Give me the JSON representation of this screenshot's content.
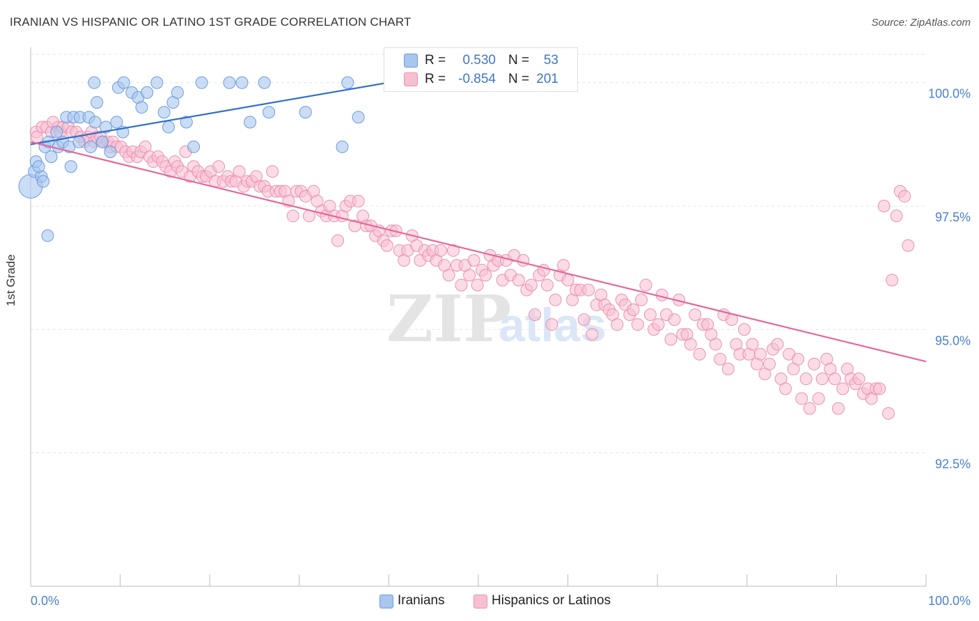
{
  "title": "IRANIAN VS HISPANIC OR LATINO 1ST GRADE CORRELATION CHART",
  "source": "Source: ZipAtlas.com",
  "watermark": {
    "zip": "ZIP",
    "atlas": "atlas"
  },
  "colors": {
    "blue_fill": "#a9c6ee",
    "blue_stroke": "#6a9be0",
    "blue_line": "#2f6fcb",
    "pink_fill": "#f7bfd2",
    "pink_stroke": "#ec8fb0",
    "pink_line": "#e5679a",
    "tick_text": "#4a7fd0",
    "grid": "#e3e3e3"
  },
  "legend": {
    "rows": [
      {
        "r_label": "R =",
        "r_value": "0.530",
        "n_label": "N =",
        "n_value": "53"
      },
      {
        "r_label": "R =",
        "r_value": "-0.854",
        "n_label": "N =",
        "n_value": "201"
      }
    ]
  },
  "bottom_legend": {
    "items": [
      "Iranians",
      "Hispanics or Latinos"
    ]
  },
  "chart_data": {
    "type": "scatter",
    "title": "IRANIAN VS HISPANIC OR LATINO 1ST GRADE CORRELATION CHART",
    "ylabel": "1st Grade",
    "xlabel": "",
    "x_tick_labels": [
      "0.0%",
      "100.0%"
    ],
    "y_tick_labels": [
      "100.0%",
      "97.5%",
      "95.0%",
      "92.5%"
    ],
    "y_tick_values": [
      100.0,
      97.5,
      95.0,
      92.5
    ],
    "xlim": [
      0,
      100
    ],
    "ylim": [
      89.8,
      100.8
    ],
    "grid": true,
    "legend_position": "top-center",
    "series": [
      {
        "name": "Iranians",
        "R": 0.53,
        "N": 53,
        "trend": {
          "x": [
            0,
            41.5
          ],
          "y": [
            98.75,
            100.05
          ]
        },
        "points": [
          [
            0.0,
            97.9
          ],
          [
            0.4,
            98.2
          ],
          [
            0.6,
            98.4
          ],
          [
            1.2,
            98.1
          ],
          [
            1.4,
            98.0
          ],
          [
            0.9,
            98.3
          ],
          [
            1.6,
            98.7
          ],
          [
            2.0,
            98.8
          ],
          [
            2.3,
            98.5
          ],
          [
            3.1,
            98.7
          ],
          [
            2.9,
            99.0
          ],
          [
            3.6,
            98.8
          ],
          [
            1.9,
            96.9
          ],
          [
            4.5,
            98.3
          ],
          [
            4.3,
            98.7
          ],
          [
            4.0,
            99.3
          ],
          [
            4.8,
            99.3
          ],
          [
            5.4,
            98.8
          ],
          [
            5.5,
            99.3
          ],
          [
            6.5,
            99.3
          ],
          [
            6.7,
            98.7
          ],
          [
            7.2,
            99.2
          ],
          [
            8.0,
            98.8
          ],
          [
            8.4,
            99.1
          ],
          [
            8.9,
            98.6
          ],
          [
            9.6,
            99.2
          ],
          [
            10.3,
            99.0
          ],
          [
            7.4,
            99.6
          ],
          [
            7.1,
            100.0
          ],
          [
            9.8,
            99.9
          ],
          [
            10.4,
            100.0
          ],
          [
            11.3,
            99.8
          ],
          [
            12.0,
            99.7
          ],
          [
            12.4,
            99.5
          ],
          [
            13.0,
            99.8
          ],
          [
            14.1,
            100.0
          ],
          [
            14.9,
            99.4
          ],
          [
            15.4,
            99.1
          ],
          [
            15.9,
            99.6
          ],
          [
            16.4,
            99.8
          ],
          [
            17.4,
            99.2
          ],
          [
            18.2,
            98.7
          ],
          [
            19.1,
            100.0
          ],
          [
            22.2,
            100.0
          ],
          [
            23.6,
            100.0
          ],
          [
            24.5,
            99.2
          ],
          [
            26.1,
            100.0
          ],
          [
            26.6,
            99.4
          ],
          [
            30.7,
            99.4
          ],
          [
            34.8,
            98.7
          ],
          [
            35.4,
            100.0
          ],
          [
            36.6,
            99.3
          ],
          [
            41.5,
            100.0
          ]
        ]
      },
      {
        "name": "Hispanics or Latinos",
        "R": -0.854,
        "N": 201,
        "trend": {
          "x": [
            0,
            100
          ],
          "y": [
            98.8,
            94.35
          ]
        },
        "points": [
          [
            0.6,
            99.0
          ],
          [
            0.7,
            98.9
          ],
          [
            1.3,
            99.1
          ],
          [
            1.8,
            99.1
          ],
          [
            2.3,
            99.0
          ],
          [
            2.5,
            99.2
          ],
          [
            3.1,
            99.1
          ],
          [
            3.3,
            99.0
          ],
          [
            3.6,
            99.1
          ],
          [
            4.2,
            99.1
          ],
          [
            4.6,
            99.0
          ],
          [
            5.1,
            99.0
          ],
          [
            5.6,
            98.9
          ],
          [
            6.0,
            98.8
          ],
          [
            6.4,
            98.9
          ],
          [
            6.8,
            99.0
          ],
          [
            7.1,
            98.8
          ],
          [
            7.4,
            98.9
          ],
          [
            7.8,
            98.9
          ],
          [
            8.1,
            98.8
          ],
          [
            8.6,
            98.8
          ],
          [
            8.9,
            98.7
          ],
          [
            9.2,
            98.8
          ],
          [
            9.6,
            98.7
          ],
          [
            10.1,
            98.7
          ],
          [
            10.6,
            98.6
          ],
          [
            11.0,
            98.5
          ],
          [
            11.4,
            98.6
          ],
          [
            11.9,
            98.5
          ],
          [
            12.3,
            98.6
          ],
          [
            12.8,
            98.7
          ],
          [
            13.3,
            98.5
          ],
          [
            13.7,
            98.4
          ],
          [
            14.2,
            98.5
          ],
          [
            14.7,
            98.4
          ],
          [
            15.1,
            98.3
          ],
          [
            15.6,
            98.2
          ],
          [
            16.1,
            98.4
          ],
          [
            16.4,
            98.3
          ],
          [
            16.9,
            98.2
          ],
          [
            17.3,
            98.6
          ],
          [
            17.8,
            98.1
          ],
          [
            18.2,
            98.3
          ],
          [
            18.7,
            98.2
          ],
          [
            19.2,
            98.1
          ],
          [
            19.6,
            98.1
          ],
          [
            20.1,
            98.2
          ],
          [
            20.6,
            98.0
          ],
          [
            21.0,
            98.3
          ],
          [
            21.5,
            98.0
          ],
          [
            22.0,
            98.1
          ],
          [
            22.4,
            98.0
          ],
          [
            22.9,
            98.0
          ],
          [
            23.3,
            98.2
          ],
          [
            23.8,
            97.9
          ],
          [
            24.2,
            98.0
          ],
          [
            24.7,
            98.0
          ],
          [
            25.2,
            98.1
          ],
          [
            25.6,
            97.9
          ],
          [
            26.1,
            97.9
          ],
          [
            26.5,
            97.8
          ],
          [
            27.0,
            98.2
          ],
          [
            27.4,
            97.8
          ],
          [
            27.9,
            97.8
          ],
          [
            28.4,
            97.8
          ],
          [
            28.8,
            97.6
          ],
          [
            29.3,
            97.3
          ],
          [
            29.7,
            97.8
          ],
          [
            30.2,
            97.8
          ],
          [
            30.7,
            97.7
          ],
          [
            31.1,
            97.3
          ],
          [
            31.6,
            97.8
          ],
          [
            32.0,
            97.6
          ],
          [
            32.5,
            97.4
          ],
          [
            33.0,
            97.3
          ],
          [
            33.4,
            97.5
          ],
          [
            33.9,
            97.3
          ],
          [
            34.3,
            96.8
          ],
          [
            34.8,
            97.3
          ],
          [
            35.2,
            97.5
          ],
          [
            35.7,
            97.6
          ],
          [
            36.2,
            97.1
          ],
          [
            36.6,
            97.6
          ],
          [
            37.1,
            97.3
          ],
          [
            37.5,
            97.1
          ],
          [
            38.0,
            97.1
          ],
          [
            38.5,
            96.9
          ],
          [
            38.9,
            97.0
          ],
          [
            39.4,
            96.8
          ],
          [
            39.8,
            96.7
          ],
          [
            40.3,
            97.0
          ],
          [
            40.8,
            97.0
          ],
          [
            41.2,
            96.6
          ],
          [
            41.7,
            96.4
          ],
          [
            42.1,
            96.6
          ],
          [
            42.6,
            96.9
          ],
          [
            43.1,
            96.7
          ],
          [
            43.5,
            96.4
          ],
          [
            44.0,
            96.6
          ],
          [
            44.4,
            96.5
          ],
          [
            44.9,
            96.6
          ],
          [
            45.3,
            96.4
          ],
          [
            45.8,
            96.6
          ],
          [
            46.2,
            96.3
          ],
          [
            46.7,
            96.1
          ],
          [
            47.2,
            96.6
          ],
          [
            47.6,
            96.3
          ],
          [
            48.1,
            95.9
          ],
          [
            48.5,
            96.3
          ],
          [
            49.0,
            96.1
          ],
          [
            49.5,
            96.4
          ],
          [
            49.9,
            95.9
          ],
          [
            50.4,
            96.2
          ],
          [
            50.8,
            96.1
          ],
          [
            51.3,
            96.5
          ],
          [
            51.7,
            96.3
          ],
          [
            52.2,
            96.4
          ],
          [
            52.7,
            96.0
          ],
          [
            53.1,
            96.4
          ],
          [
            53.6,
            96.1
          ],
          [
            54.0,
            96.5
          ],
          [
            54.5,
            96.0
          ],
          [
            55.0,
            96.4
          ],
          [
            55.4,
            95.8
          ],
          [
            55.9,
            95.9
          ],
          [
            56.3,
            95.3
          ],
          [
            56.8,
            96.1
          ],
          [
            57.3,
            96.2
          ],
          [
            57.7,
            95.9
          ],
          [
            58.2,
            95.1
          ],
          [
            58.6,
            95.6
          ],
          [
            59.1,
            96.1
          ],
          [
            59.5,
            96.3
          ],
          [
            60.0,
            96.0
          ],
          [
            60.5,
            95.6
          ],
          [
            60.9,
            95.8
          ],
          [
            61.4,
            95.8
          ],
          [
            61.8,
            95.2
          ],
          [
            62.3,
            95.8
          ],
          [
            62.7,
            94.9
          ],
          [
            63.2,
            95.5
          ],
          [
            63.7,
            95.7
          ],
          [
            64.1,
            95.5
          ],
          [
            64.6,
            95.4
          ],
          [
            65.0,
            95.3
          ],
          [
            65.5,
            95.1
          ],
          [
            66.0,
            95.6
          ],
          [
            66.4,
            95.5
          ],
          [
            66.9,
            95.3
          ],
          [
            67.3,
            95.4
          ],
          [
            67.8,
            95.1
          ],
          [
            68.2,
            95.6
          ],
          [
            68.7,
            95.9
          ],
          [
            69.2,
            95.3
          ],
          [
            69.6,
            95.0
          ],
          [
            70.1,
            95.1
          ],
          [
            70.5,
            95.7
          ],
          [
            71.0,
            95.3
          ],
          [
            71.5,
            94.8
          ],
          [
            71.9,
            95.2
          ],
          [
            72.4,
            95.6
          ],
          [
            72.8,
            94.9
          ],
          [
            73.3,
            94.9
          ],
          [
            73.7,
            94.7
          ],
          [
            74.2,
            95.3
          ],
          [
            74.7,
            94.5
          ],
          [
            75.1,
            95.1
          ],
          [
            75.6,
            95.1
          ],
          [
            76.0,
            94.9
          ],
          [
            76.5,
            94.7
          ],
          [
            77.0,
            94.4
          ],
          [
            77.4,
            95.3
          ],
          [
            77.9,
            94.2
          ],
          [
            78.3,
            95.2
          ],
          [
            78.8,
            94.7
          ],
          [
            79.2,
            94.5
          ],
          [
            79.7,
            95.0
          ],
          [
            80.2,
            94.5
          ],
          [
            80.6,
            94.7
          ],
          [
            81.1,
            94.3
          ],
          [
            81.5,
            94.5
          ],
          [
            82.0,
            94.1
          ],
          [
            82.5,
            94.3
          ],
          [
            82.9,
            94.6
          ],
          [
            83.4,
            94.7
          ],
          [
            83.8,
            94.0
          ],
          [
            84.3,
            93.8
          ],
          [
            84.7,
            94.5
          ],
          [
            85.2,
            94.2
          ],
          [
            85.7,
            94.4
          ],
          [
            86.1,
            93.6
          ],
          [
            86.6,
            94.0
          ],
          [
            87.0,
            93.4
          ],
          [
            87.5,
            94.3
          ],
          [
            88.0,
            93.6
          ],
          [
            88.4,
            94.0
          ],
          [
            88.9,
            94.4
          ],
          [
            89.3,
            94.2
          ],
          [
            89.8,
            94.0
          ],
          [
            90.2,
            93.4
          ],
          [
            90.7,
            93.8
          ],
          [
            91.2,
            94.2
          ],
          [
            91.6,
            94.0
          ],
          [
            92.1,
            93.9
          ],
          [
            92.5,
            94.0
          ],
          [
            93.0,
            93.7
          ],
          [
            93.5,
            93.8
          ],
          [
            93.9,
            93.6
          ],
          [
            94.4,
            93.8
          ],
          [
            94.8,
            93.8
          ],
          [
            95.3,
            97.5
          ],
          [
            95.8,
            93.3
          ],
          [
            96.2,
            96.0
          ],
          [
            96.7,
            97.3
          ],
          [
            97.1,
            97.8
          ],
          [
            97.6,
            97.7
          ],
          [
            98.0,
            96.7
          ]
        ]
      }
    ]
  }
}
